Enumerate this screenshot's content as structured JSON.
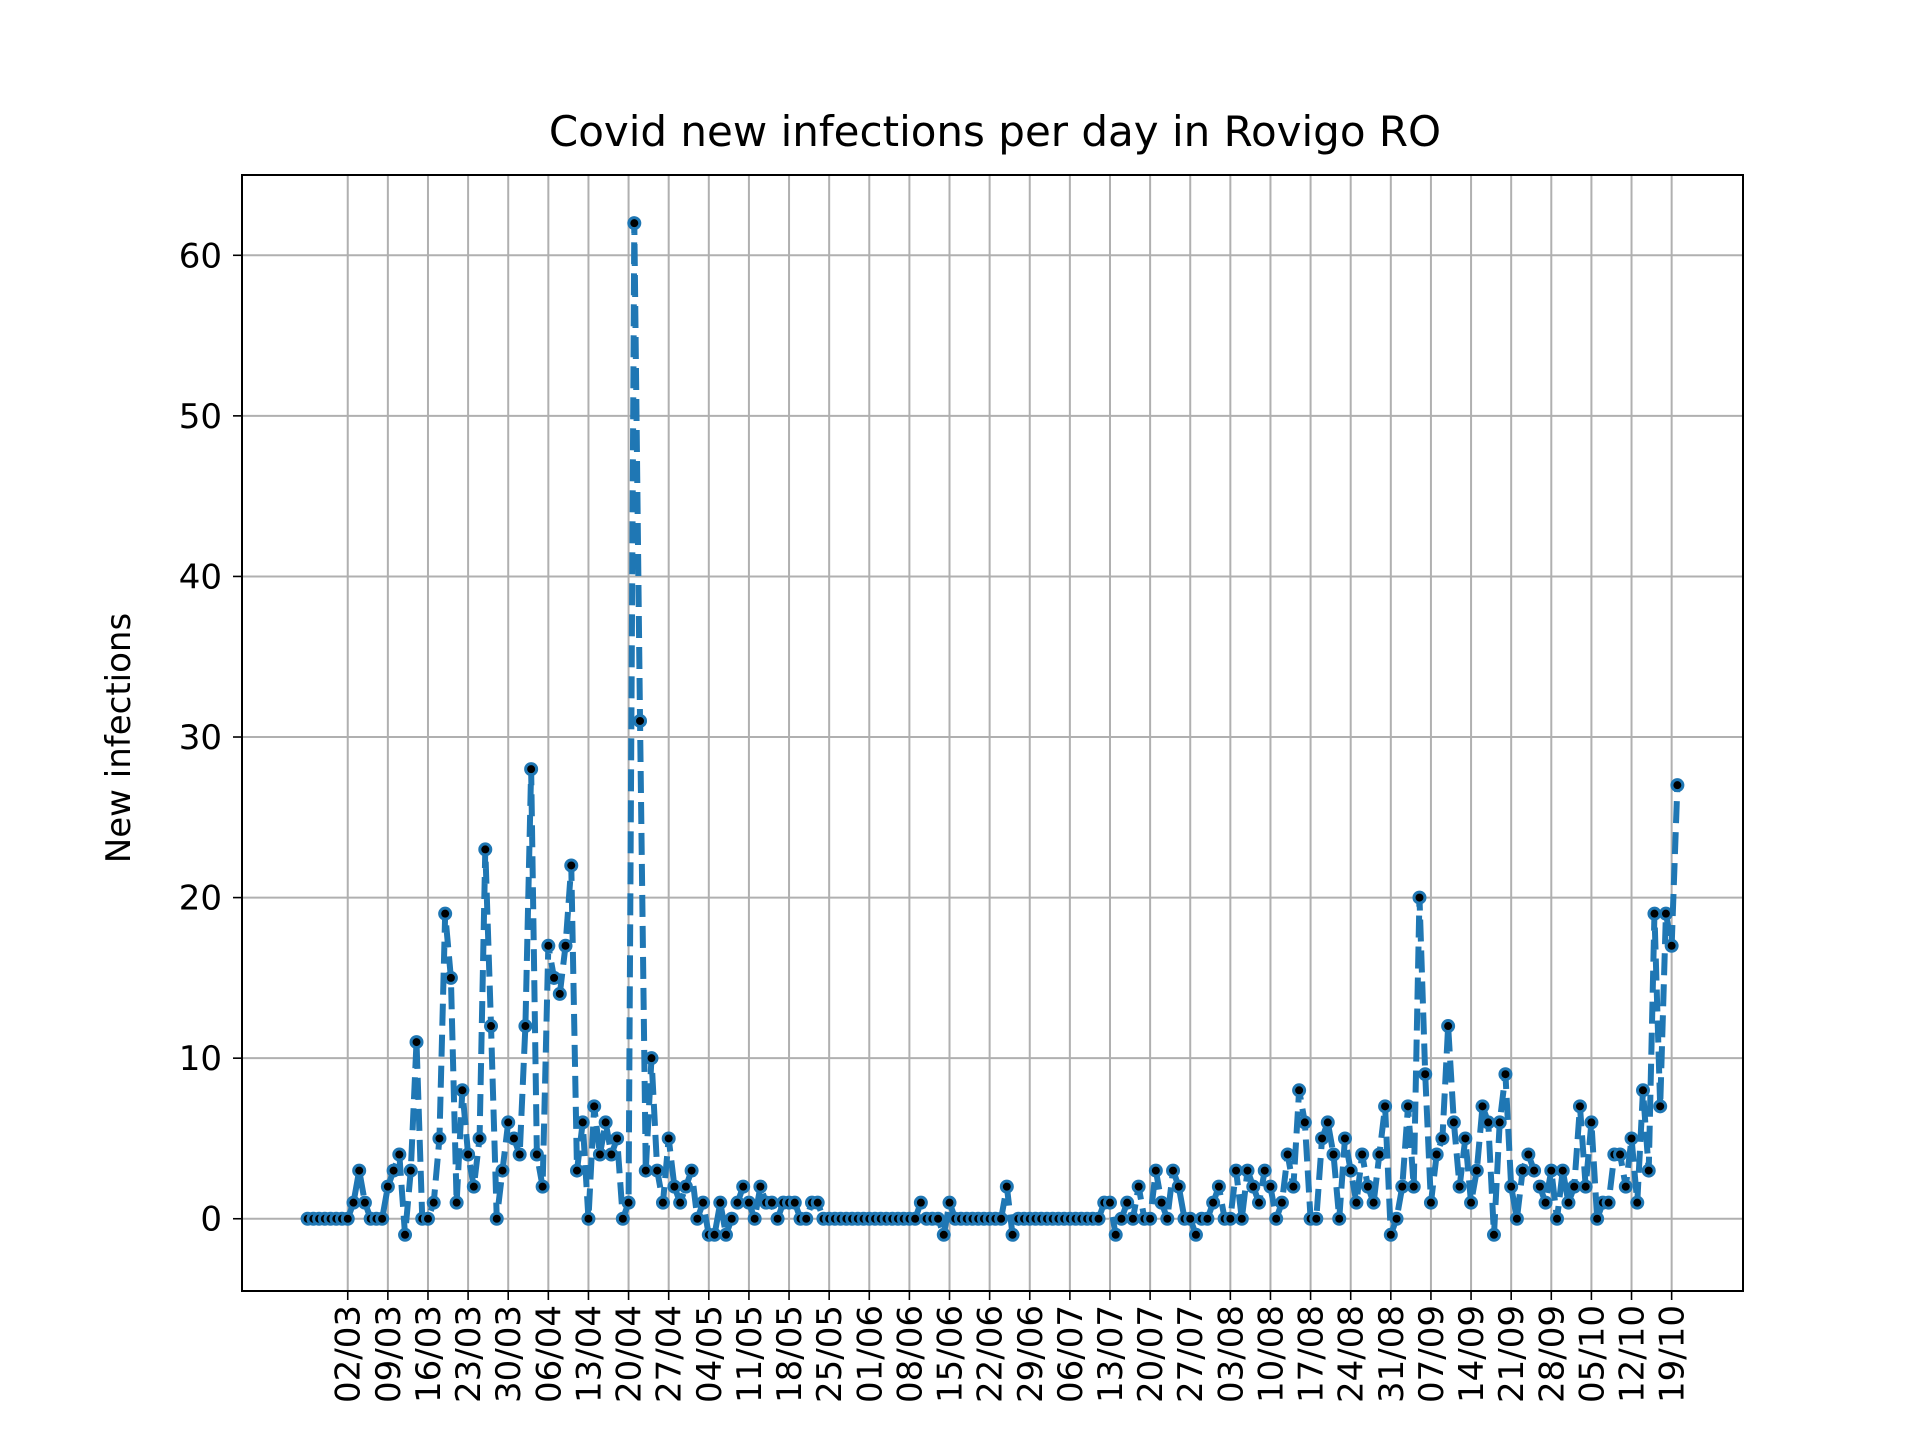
{
  "chart_data": {
    "type": "line",
    "title": "Covid new infections per day in Rovigo RO",
    "xlabel": "",
    "ylabel": "New infections",
    "ylim": [
      -4.5,
      65
    ],
    "yticks": [
      0,
      10,
      20,
      30,
      40,
      50,
      60
    ],
    "xticks": [
      "02/03",
      "09/03",
      "16/03",
      "23/03",
      "30/03",
      "06/04",
      "13/04",
      "20/04",
      "27/04",
      "04/05",
      "11/05",
      "18/05",
      "25/05",
      "01/06",
      "08/06",
      "15/06",
      "22/06",
      "29/06",
      "06/07",
      "13/07",
      "20/07",
      "27/07",
      "03/08",
      "10/08",
      "17/08",
      "24/08",
      "31/08",
      "07/09",
      "14/09",
      "21/09",
      "28/09",
      "05/10",
      "12/10",
      "19/10"
    ],
    "grid": true,
    "legend": "none",
    "colors": {
      "line": "#1f77b4",
      "marker_edge": "#1f77b4",
      "marker_face": "#000000",
      "grid": "#b0b0b0"
    },
    "line_style": "dashed",
    "start_date": "2020-02-24",
    "series": [
      {
        "values": [
          0,
          0,
          0,
          0,
          0,
          0,
          0,
          0,
          1,
          3,
          1,
          0,
          0,
          0,
          2,
          3,
          4,
          -1,
          3,
          11,
          0,
          0,
          1,
          5,
          19,
          15,
          1,
          8,
          4,
          2,
          5,
          23,
          12,
          0,
          3,
          6,
          5,
          4,
          12,
          28,
          4,
          2,
          17,
          15,
          14,
          17,
          22,
          3,
          6,
          0,
          7,
          4,
          6,
          4,
          5,
          0,
          1,
          62,
          31,
          3,
          10,
          3,
          1,
          5,
          2,
          1,
          2,
          3,
          0,
          1,
          -1,
          -1,
          1,
          -1,
          0,
          1,
          2,
          1,
          0,
          2,
          1,
          1,
          0,
          1,
          1,
          1,
          0,
          0,
          1,
          1,
          0,
          0,
          0,
          0,
          0,
          0,
          0,
          0,
          0,
          0,
          0,
          0,
          0,
          0,
          0,
          0,
          0,
          1,
          0,
          0,
          0,
          -1,
          1,
          0,
          0,
          0,
          0,
          0,
          0,
          0,
          0,
          0,
          2,
          -1,
          0,
          0,
          0,
          0,
          0,
          0,
          0,
          0,
          0,
          0,
          0,
          0,
          0,
          0,
          0,
          1,
          1,
          -1,
          0,
          1,
          0,
          2,
          0,
          0,
          3,
          1,
          0,
          3,
          2,
          0,
          0,
          -1,
          0,
          0,
          1,
          2,
          0,
          0,
          3,
          0,
          3,
          2,
          1,
          3,
          2,
          0,
          1,
          4,
          2,
          8,
          6,
          0,
          0,
          5,
          6,
          4,
          0,
          5,
          3,
          1,
          4,
          2,
          1,
          4,
          7,
          -1,
          0,
          2,
          7,
          2,
          20,
          9,
          1,
          4,
          5,
          12,
          6,
          2,
          5,
          1,
          3,
          7,
          6,
          -1,
          6,
          9,
          2,
          0,
          3,
          4,
          3,
          2,
          1,
          3,
          0,
          3,
          1,
          2,
          7,
          2,
          6,
          0,
          1,
          1,
          4,
          4,
          2,
          5,
          1,
          8,
          3,
          19,
          7,
          19,
          17,
          27
        ]
      }
    ]
  }
}
